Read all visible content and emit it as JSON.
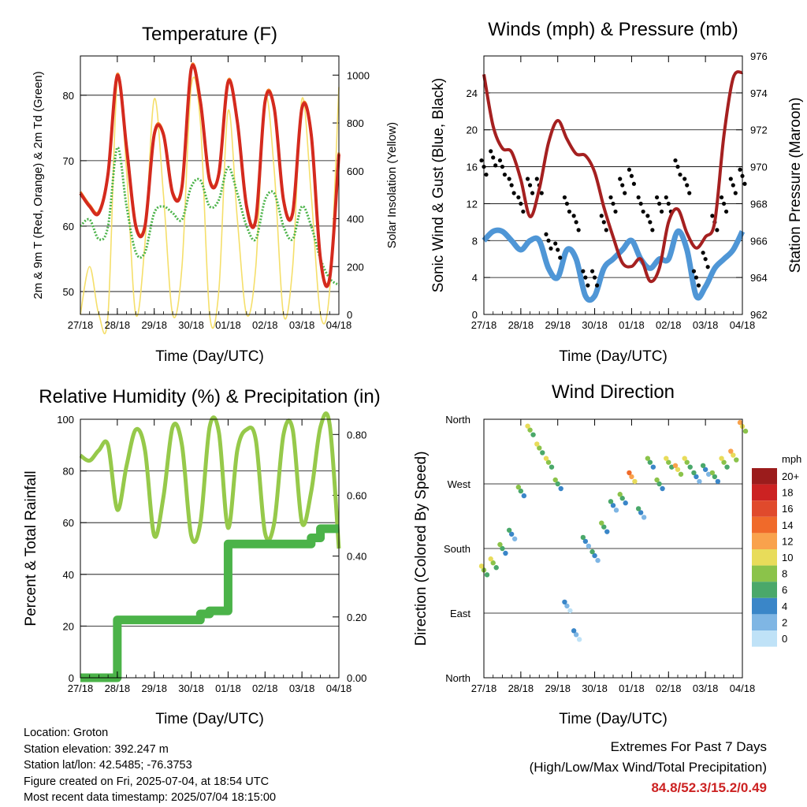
{
  "panels": {
    "temperature": {
      "title": "Temperature (F)",
      "ylabel_left": "2m & 9m T (Red, Orange) & 2m Td (Green)",
      "ylabel_right": "Solar Insolation (Yellow)",
      "xlabel": "Time (Day/UTC)"
    },
    "winds": {
      "title": "Winds (mph) & Pressure (mb)",
      "ylabel_left": "Sonic Wind & Gust (Blue, Black)",
      "ylabel_right": "Station Pressure (Maroon)",
      "xlabel": "Time (Day/UTC)"
    },
    "humidity": {
      "title": "Relative Humidity (%) & Precipitation (in)",
      "ylabel_left": "Percent & Total Rainfall",
      "xlabel": "Time (Day/UTC)"
    },
    "direction": {
      "title": "Wind Direction",
      "ylabel_left": "Direction (Colored By Speed)",
      "xlabel": "Time (Day/UTC)",
      "legend_title": "mph"
    }
  },
  "info": {
    "location": "Location: Groton",
    "elevation": "Station elevation: 392.247 m",
    "latlon": "Station lat/lon: 42.5485; -76.3753",
    "created": "Figure created on Fri, 2025-07-04, at 18:54 UTC",
    "recent": "Most recent data timestamp: 2025/07/04 18:15:00"
  },
  "extremes": {
    "line1": "Extremes For Past 7 Days",
    "line2": "(High/Low/Max Wind/Total Precipitation)",
    "values": "84.8/52.3/15.2/0.49"
  },
  "colors": {
    "temp2m": "#d42a1e",
    "temp9m": "#f07a1e",
    "dewpoint": "#4bb349",
    "solar": "#f5df6a",
    "wind": "#4f96d6",
    "gust": "#000000",
    "pressure": "#a52020",
    "rh": "#96c94a",
    "precip": "#4bb349"
  },
  "chart_data": [
    {
      "type": "line",
      "panel": "temperature",
      "title": "Temperature (F)",
      "xlabel": "Time (Day/UTC)",
      "ylabel": "2m & 9m T (Red, Orange) & 2m Td (Green)",
      "y2label": "Solar Insolation (Yellow)",
      "x_ticks": [
        "27/18",
        "28/18",
        "29/18",
        "30/18",
        "01/18",
        "02/18",
        "03/18",
        "04/18"
      ],
      "ylim": [
        46.5,
        86
      ],
      "y_ticks": [
        50,
        60,
        70,
        80
      ],
      "y2lim": [
        0,
        1080
      ],
      "y2_ticks": [
        0,
        200,
        400,
        600,
        800,
        1000
      ],
      "x": [
        0,
        0.25,
        0.5,
        0.75,
        1,
        1.25,
        1.5,
        1.75,
        2,
        2.25,
        2.5,
        2.75,
        3,
        3.25,
        3.5,
        3.75,
        4,
        4.25,
        4.5,
        4.75,
        5,
        5.25,
        5.5,
        5.75,
        6,
        6.25,
        6.5,
        6.75,
        7
      ],
      "series": [
        {
          "name": "2m T",
          "values": [
            65,
            63,
            62,
            68,
            83,
            72,
            60,
            60,
            74,
            74,
            65,
            66,
            84,
            79,
            67,
            68,
            82,
            76,
            63,
            61,
            79,
            78,
            64,
            62,
            78,
            74,
            55,
            52,
            71
          ]
        },
        {
          "name": "2m Td",
          "values": [
            60,
            61,
            58,
            60,
            72,
            63,
            56,
            56,
            62,
            63,
            62,
            61,
            66,
            67,
            63,
            64,
            69,
            65,
            60,
            58,
            64,
            65,
            60,
            58,
            63,
            60,
            55,
            52,
            51
          ]
        },
        {
          "name": "Solar Insolation",
          "values": [
            0,
            200,
            0,
            0,
            980,
            600,
            0,
            300,
            900,
            500,
            0,
            200,
            950,
            800,
            0,
            100,
            850,
            400,
            0,
            200,
            900,
            600,
            0,
            200,
            900,
            500,
            0,
            100,
            950
          ]
        }
      ]
    },
    {
      "type": "line",
      "panel": "winds",
      "title": "Winds (mph) & Pressure (mb)",
      "xlabel": "Time (Day/UTC)",
      "ylabel": "Sonic Wind & Gust (Blue, Black)",
      "y2label": "Station Pressure (Maroon)",
      "x_ticks": [
        "27/18",
        "28/18",
        "29/18",
        "30/18",
        "01/18",
        "02/18",
        "03/18",
        "04/18"
      ],
      "ylim": [
        0,
        28
      ],
      "y_ticks": [
        0,
        4,
        8,
        12,
        16,
        20,
        24
      ],
      "y2lim": [
        962,
        976
      ],
      "y2_ticks": [
        962,
        964,
        966,
        968,
        970,
        972,
        974,
        976
      ],
      "x": [
        0,
        0.25,
        0.5,
        0.75,
        1,
        1.25,
        1.5,
        1.75,
        2,
        2.25,
        2.5,
        2.75,
        3,
        3.25,
        3.5,
        3.75,
        4,
        4.25,
        4.5,
        4.75,
        5,
        5.25,
        5.5,
        5.75,
        6,
        6.25,
        6.5,
        6.75,
        7
      ],
      "series": [
        {
          "name": "Wind",
          "values": [
            8,
            9,
            9,
            8,
            7,
            8,
            8,
            5,
            4,
            7,
            6,
            2,
            2,
            5,
            6,
            7,
            8,
            6,
            5,
            6,
            6,
            9,
            7,
            2,
            3,
            5,
            6,
            7,
            9
          ]
        },
        {
          "name": "Gust",
          "values": [
            16,
            17,
            16,
            14,
            12,
            14,
            14,
            8,
            7,
            12,
            10,
            4,
            4,
            10,
            12,
            14,
            15,
            12,
            10,
            12,
            12,
            16,
            14,
            4,
            6,
            10,
            12,
            14,
            15
          ]
        },
        {
          "name": "Pressure",
          "values": [
            975.0,
            972.2,
            971.0,
            970.8,
            969.3,
            967.3,
            968.8,
            971.3,
            972.5,
            971.5,
            970.7,
            970.6,
            969.7,
            967.8,
            966.2,
            964.8,
            964.6,
            965.0,
            963.8,
            964.5,
            967.0,
            967.7,
            966.4,
            965.6,
            966.2,
            967.0,
            971.7,
            974.8,
            975.1
          ]
        }
      ]
    },
    {
      "type": "line",
      "panel": "humidity",
      "title": "Relative Humidity (%) & Precipitation (in)",
      "xlabel": "Time (Day/UTC)",
      "ylabel": "Percent & Total Rainfall",
      "x_ticks": [
        "27/18",
        "28/18",
        "29/18",
        "30/18",
        "01/18",
        "02/18",
        "03/18",
        "04/18"
      ],
      "ylim": [
        0,
        100
      ],
      "y_ticks": [
        0,
        20,
        40,
        60,
        80,
        100
      ],
      "y2lim": [
        0,
        0.85
      ],
      "y2_ticks": [
        0.0,
        0.2,
        0.4,
        0.6,
        0.8
      ],
      "x": [
        0,
        0.25,
        0.5,
        0.75,
        1,
        1.25,
        1.5,
        1.75,
        2,
        2.25,
        2.5,
        2.75,
        3,
        3.25,
        3.5,
        3.75,
        4,
        4.25,
        4.5,
        4.75,
        5,
        5.25,
        5.5,
        5.75,
        6,
        6.25,
        6.5,
        6.75,
        7
      ],
      "series": [
        {
          "name": "Relative Humidity",
          "values": [
            86,
            84,
            88,
            90,
            65,
            82,
            96,
            88,
            55,
            70,
            97,
            90,
            55,
            60,
            97,
            95,
            58,
            88,
            96,
            92,
            56,
            60,
            94,
            96,
            60,
            72,
            97,
            98,
            50
          ]
        },
        {
          "name": "Total Precipitation",
          "values": [
            0,
            0,
            0,
            0,
            0.19,
            0.19,
            0.19,
            0.19,
            0.19,
            0.19,
            0.19,
            0.19,
            0.19,
            0.21,
            0.22,
            0.22,
            0.44,
            0.44,
            0.44,
            0.44,
            0.44,
            0.44,
            0.44,
            0.44,
            0.44,
            0.46,
            0.49,
            0.49,
            0.49
          ]
        }
      ]
    },
    {
      "type": "scatter",
      "panel": "direction",
      "title": "Wind Direction",
      "xlabel": "Time (Day/UTC)",
      "ylabel": "Direction (Colored By Speed)",
      "x_ticks": [
        "27/18",
        "28/18",
        "29/18",
        "30/18",
        "01/18",
        "02/18",
        "03/18",
        "04/18"
      ],
      "y_ticks": [
        "North",
        "East",
        "South",
        "West",
        "North"
      ],
      "ylim_deg": [
        0,
        360
      ],
      "legend": {
        "title": "mph",
        "labels": [
          "20+",
          "18",
          "16",
          "14",
          "12",
          "10",
          "8",
          "6",
          "4",
          "2",
          "0"
        ],
        "colors": [
          "#9b1c1c",
          "#cc2222",
          "#e04a2c",
          "#f06a2a",
          "#f9a24c",
          "#e8dc5a",
          "#8bc34a",
          "#4aa86a",
          "#3a86c8",
          "#7fb6e4",
          "#bfe2f7"
        ]
      },
      "x": [
        0,
        0.25,
        0.5,
        0.75,
        1,
        1.25,
        1.5,
        1.75,
        2,
        2.25,
        2.5,
        2.75,
        3,
        3.25,
        3.5,
        3.75,
        4,
        4.25,
        4.5,
        4.75,
        5,
        5.25,
        5.5,
        5.75,
        6,
        6.25,
        6.5,
        6.75,
        7
      ],
      "series": [
        {
          "name": "Direction",
          "values": [
            150,
            160,
            180,
            200,
            260,
            345,
            320,
            300,
            270,
            100,
            60,
            190,
            170,
            210,
            240,
            250,
            280,
            230,
            300,
            270,
            300,
            290,
            300,
            280,
            290,
            280,
            300,
            310,
            350
          ]
        },
        {
          "name": "Speed",
          "values": [
            8,
            7,
            5,
            4,
            6,
            7,
            8,
            7,
            5,
            2,
            1,
            4,
            4,
            5,
            4,
            6,
            12,
            4,
            6,
            5,
            8,
            9,
            8,
            3,
            4,
            5,
            7,
            9,
            10
          ]
        }
      ]
    }
  ]
}
